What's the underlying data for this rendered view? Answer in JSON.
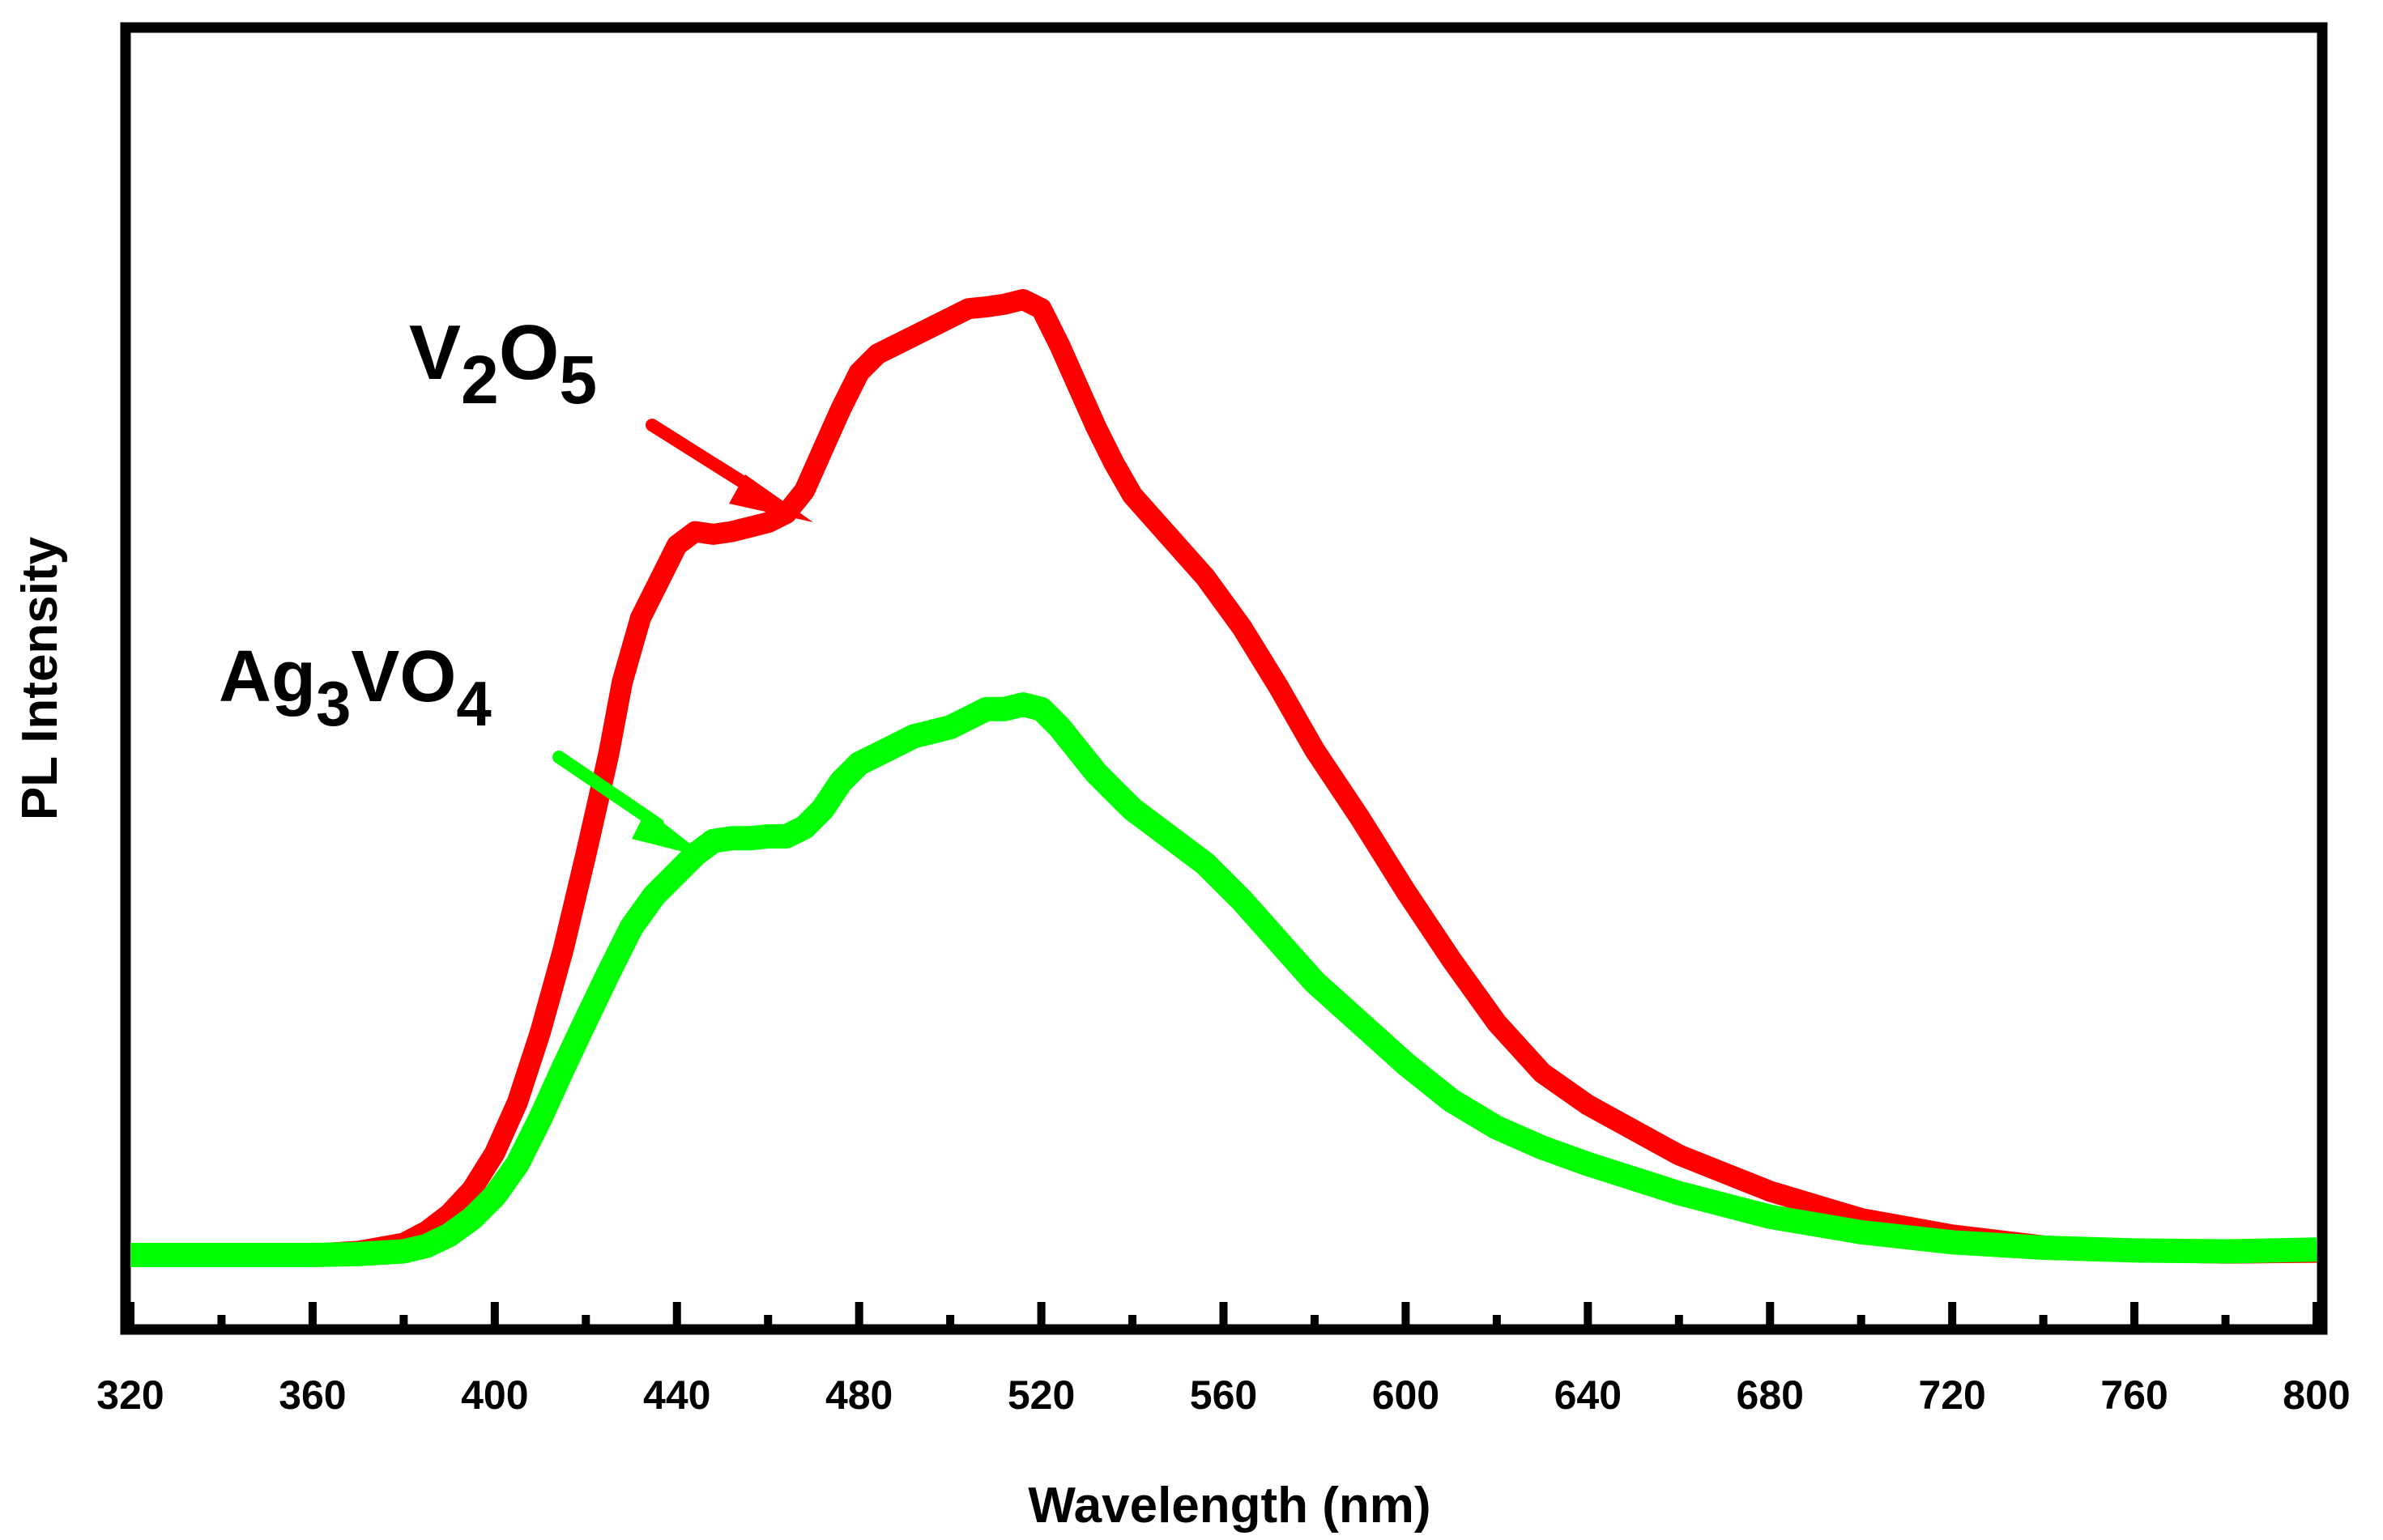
{
  "colors": {
    "v2o5": "#ff0000",
    "ag3vo4": "#00ff00",
    "axis": "#000000",
    "background": "#ffffff"
  },
  "chart_data": {
    "type": "line",
    "title": "",
    "xlabel": "Wavelength (nm)",
    "ylabel": "PL Intensity",
    "xlim": [
      320,
      800
    ],
    "ylim": [
      0,
      1.05
    ],
    "x_major_ticks": [
      320,
      360,
      400,
      440,
      480,
      520,
      560,
      600,
      640,
      680,
      720,
      760,
      800
    ],
    "x_tick_labels": [
      "320",
      "360",
      "400",
      "440",
      "480",
      "520",
      "560",
      "600",
      "640",
      "680",
      "720",
      "760",
      "800"
    ],
    "x_minor_ticks": [
      340,
      380,
      420,
      460,
      500,
      540,
      580,
      620,
      660,
      700,
      740,
      780
    ],
    "y_ticks_shown": false,
    "grid": false,
    "legend": "none",
    "series": [
      {
        "name": "V2O5",
        "label_parts": [
          {
            "text": "V",
            "sub": false
          },
          {
            "text": "2",
            "sub": true
          },
          {
            "text": "O",
            "sub": false
          },
          {
            "text": "5",
            "sub": true
          }
        ],
        "color": "#ff0000",
        "x": [
          320,
          340,
          360,
          370,
          380,
          385,
          390,
          395,
          400,
          405,
          410,
          415,
          420,
          425,
          428,
          432,
          436,
          440,
          444,
          448,
          452,
          456,
          460,
          464,
          468,
          472,
          476,
          480,
          484,
          488,
          492,
          496,
          500,
          504,
          508,
          512,
          516,
          520,
          524,
          528,
          532,
          536,
          540,
          548,
          556,
          564,
          572,
          580,
          590,
          600,
          610,
          620,
          630,
          640,
          660,
          680,
          700,
          720,
          740,
          760,
          780,
          800
        ],
        "y": [
          0.0,
          0.0,
          0.001,
          0.004,
          0.013,
          0.026,
          0.045,
          0.072,
          0.112,
          0.168,
          0.245,
          0.335,
          0.44,
          0.55,
          0.63,
          0.7,
          0.74,
          0.78,
          0.795,
          0.792,
          0.795,
          0.8,
          0.805,
          0.815,
          0.84,
          0.885,
          0.93,
          0.97,
          0.99,
          1.0,
          1.01,
          1.02,
          1.03,
          1.04,
          1.042,
          1.045,
          1.05,
          1.04,
          1.0,
          0.955,
          0.91,
          0.87,
          0.835,
          0.79,
          0.745,
          0.69,
          0.625,
          0.555,
          0.48,
          0.4,
          0.325,
          0.255,
          0.2,
          0.165,
          0.11,
          0.07,
          0.04,
          0.022,
          0.01,
          0.004,
          0.002,
          0.003
        ]
      },
      {
        "name": "Ag3VO4",
        "label_parts": [
          {
            "text": "Ag",
            "sub": false
          },
          {
            "text": "3",
            "sub": true
          },
          {
            "text": "VO",
            "sub": false
          },
          {
            "text": "4",
            "sub": true
          }
        ],
        "color": "#00ff00",
        "x": [
          320,
          340,
          360,
          370,
          380,
          385,
          390,
          395,
          400,
          405,
          410,
          415,
          420,
          425,
          430,
          435,
          440,
          444,
          448,
          452,
          456,
          460,
          464,
          468,
          472,
          476,
          480,
          484,
          488,
          492,
          496,
          500,
          504,
          508,
          512,
          516,
          520,
          524,
          528,
          532,
          536,
          540,
          548,
          556,
          564,
          572,
          580,
          590,
          600,
          610,
          620,
          630,
          640,
          660,
          680,
          700,
          720,
          740,
          760,
          780,
          800
        ],
        "y": [
          0.0,
          0.0,
          0.0,
          0.001,
          0.004,
          0.01,
          0.022,
          0.04,
          0.065,
          0.1,
          0.15,
          0.205,
          0.258,
          0.31,
          0.36,
          0.395,
          0.42,
          0.44,
          0.455,
          0.458,
          0.458,
          0.46,
          0.46,
          0.47,
          0.49,
          0.52,
          0.54,
          0.55,
          0.56,
          0.57,
          0.575,
          0.58,
          0.59,
          0.6,
          0.6,
          0.605,
          0.6,
          0.58,
          0.555,
          0.53,
          0.51,
          0.49,
          0.46,
          0.43,
          0.39,
          0.345,
          0.3,
          0.255,
          0.21,
          0.17,
          0.14,
          0.118,
          0.1,
          0.068,
          0.042,
          0.025,
          0.014,
          0.008,
          0.005,
          0.004,
          0.006
        ]
      }
    ]
  }
}
